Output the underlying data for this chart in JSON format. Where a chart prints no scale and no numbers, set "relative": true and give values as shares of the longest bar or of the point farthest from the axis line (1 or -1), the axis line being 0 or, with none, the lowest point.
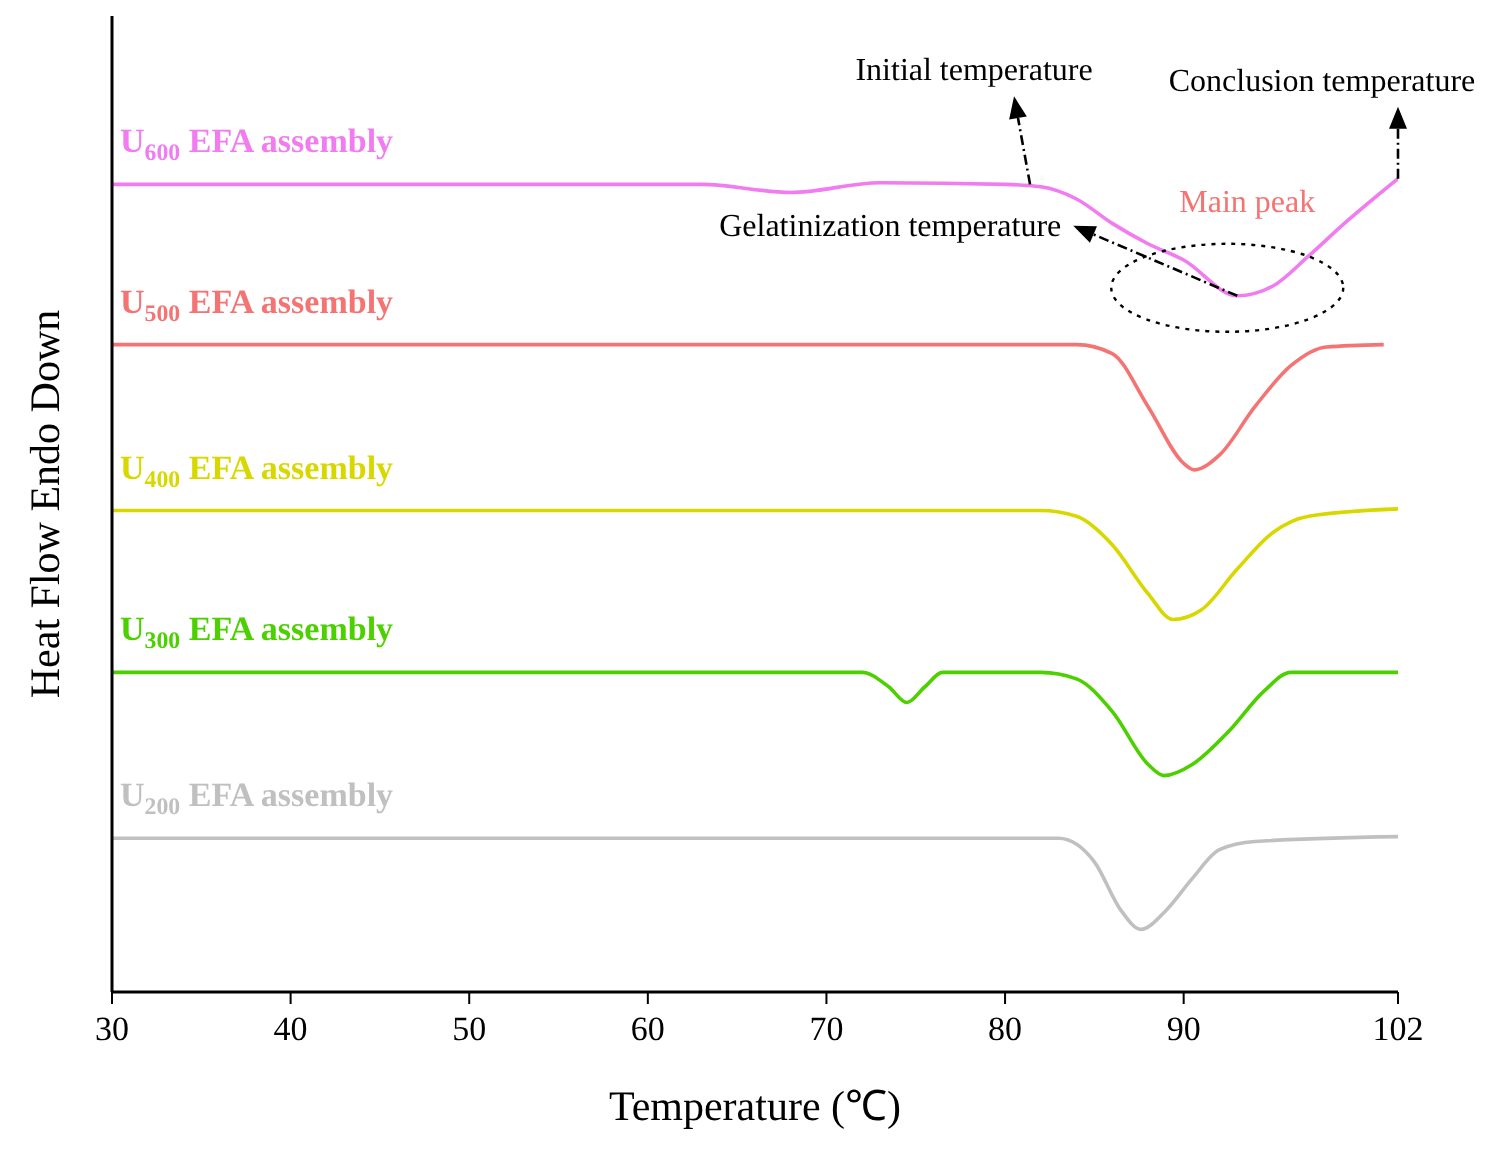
{
  "chart_data": {
    "type": "line",
    "relative": true,
    "xlabel": "Temperature (℃)",
    "ylabel": "Heat Flow Endo Down",
    "xlim": [
      30,
      102
    ],
    "xticks": [
      30,
      40,
      50,
      60,
      70,
      80,
      90,
      102
    ],
    "tick_labels": "x",
    "marker": "none",
    "line_style": "solid",
    "series": [
      {
        "name": "U$_{600}$ EFA assembly",
        "color": "#f07cf0",
        "x": [
          30,
          63,
          68,
          73,
          80,
          82,
          84,
          86,
          88,
          90,
          93,
          95,
          97,
          99,
          102
        ],
        "values": [
          0.993,
          0.993,
          0.983,
          0.995,
          0.993,
          0.99,
          0.975,
          0.945,
          0.92,
          0.9,
          0.856,
          0.868,
          0.905,
          0.945,
          1.0
        ]
      },
      {
        "name": "U$_{500}$ EFA assembly",
        "color": "#f47373",
        "x": [
          30,
          60,
          84,
          86,
          88,
          90,
          90.6,
          92,
          94,
          96,
          98,
          101.2
        ],
        "values": [
          0.796,
          0.796,
          0.796,
          0.785,
          0.72,
          0.65,
          0.642,
          0.66,
          0.72,
          0.77,
          0.793,
          0.796
        ]
      },
      {
        "name": "U$_{400}$ EFA assembly",
        "color": "#d8d800",
        "x": [
          30,
          82,
          84,
          86,
          88,
          89.4,
          91,
          93,
          95,
          97,
          102
        ],
        "values": [
          0.592,
          0.592,
          0.585,
          0.55,
          0.49,
          0.458,
          0.47,
          0.52,
          0.565,
          0.585,
          0.594
        ]
      },
      {
        "name": "U$_{300}$ EFA assembly",
        "color": "#4cd000",
        "x": [
          30,
          72,
          73.5,
          74.5,
          75.5,
          76.5,
          82,
          84,
          86,
          88,
          88.9,
          90.5,
          92.5,
          94.5,
          96,
          102
        ],
        "values": [
          0.393,
          0.393,
          0.375,
          0.356,
          0.375,
          0.393,
          0.393,
          0.385,
          0.345,
          0.28,
          0.266,
          0.28,
          0.32,
          0.37,
          0.393,
          0.393
        ]
      },
      {
        "name": "U$_{200}$ EFA assembly",
        "color": "#c0c0c0",
        "x": [
          30,
          83,
          85,
          86.5,
          87.6,
          89,
          90.5,
          92,
          94,
          102
        ],
        "values": [
          0.189,
          0.189,
          0.16,
          0.1,
          0.077,
          0.1,
          0.14,
          0.175,
          0.185,
          0.191
        ]
      }
    ],
    "annotations": [
      {
        "text": "Initial temperature",
        "x": 81.4,
        "y": 0.993
      },
      {
        "text": "Conclusion temperature",
        "x": 102,
        "y": 1.0
      },
      {
        "text": "Main peak",
        "x": 93,
        "y": 0.856
      },
      {
        "text": "Gelatinization temperature",
        "x": 93,
        "y": 0.856
      }
    ]
  }
}
